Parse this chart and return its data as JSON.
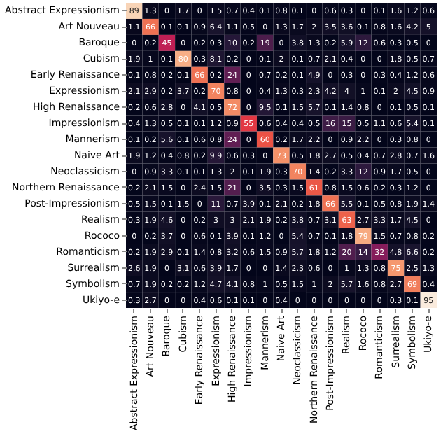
{
  "chart_data": {
    "type": "heatmap",
    "categories": [
      "Abstract Expressionism",
      "Art Nouveau",
      "Baroque",
      "Cubism",
      "Early Renaissance",
      "Expressionism",
      "High Renaissance",
      "Impressionism",
      "Mannerism",
      "Naive Art",
      "Neoclassicism",
      "Northern Renaissance",
      "Post-Impressionism",
      "Realism",
      "Rococo",
      "Romanticism",
      "Surrealism",
      "Symbolism",
      "Ukiyo-e"
    ],
    "y_categories": [
      "Abstract Expressionism",
      "Art Nouveau",
      "Baroque",
      "Cubism",
      "Early Renaissance",
      "Expressionism",
      "High Renaissance",
      "Impressionism",
      "Mannerism",
      "Naive Art",
      "Neoclassicism",
      "Northern Renaissance",
      "Post-Impressionism",
      "Realism",
      "Rococo",
      "Romanticism",
      "Surrealism",
      "Symbolism",
      "Ukiyo-e"
    ],
    "cells": [
      [
        89,
        1.3,
        0,
        1.7,
        0,
        1.5,
        0.7,
        0.4,
        0.1,
        0.8,
        0.1,
        0,
        0.6,
        0.3,
        0,
        0.1,
        1.6,
        1.2,
        0.6
      ],
      [
        1.1,
        66,
        0.1,
        0.1,
        0.9,
        6.4,
        1.1,
        0.5,
        0,
        1.3,
        1.7,
        2,
        3.5,
        3.6,
        0.1,
        0.8,
        1.6,
        4.2,
        5
      ],
      [
        0,
        0.2,
        45,
        0,
        0.2,
        0.3,
        10,
        0.2,
        19,
        0,
        3.8,
        1.3,
        0.2,
        5.9,
        12,
        0.6,
        0.3,
        0.5,
        0
      ],
      [
        1.9,
        1,
        0.1,
        80,
        0.3,
        8.1,
        0.2,
        0,
        0.1,
        2,
        0.1,
        0.7,
        2.1,
        0.4,
        0,
        0,
        1.8,
        0.5,
        0.7
      ],
      [
        0.1,
        0.8,
        0.2,
        0.1,
        66,
        0.2,
        24,
        0,
        0.7,
        0.2,
        0.1,
        4.9,
        0,
        0.3,
        0,
        0.3,
        0.4,
        1.2,
        0.6
      ],
      [
        2.1,
        2.9,
        0.2,
        3.7,
        0.2,
        70,
        0.8,
        0,
        0.4,
        1.3,
        0.3,
        2.3,
        4.2,
        4,
        1,
        0.1,
        2,
        4.5,
        0.9
      ],
      [
        0.2,
        0.6,
        2.8,
        0,
        4.1,
        0.5,
        72,
        0,
        9.5,
        0.1,
        1.5,
        5.7,
        0.1,
        1.4,
        0.8,
        0,
        0.1,
        0.5,
        0.1
      ],
      [
        0.4,
        1.3,
        0.5,
        0.1,
        0.1,
        1.2,
        0.9,
        55,
        0.6,
        0.4,
        0.4,
        0.5,
        16,
        15,
        0.5,
        1.1,
        0.6,
        5.4,
        0.1
      ],
      [
        0.1,
        0.2,
        5.6,
        0.1,
        0.6,
        0.8,
        24,
        0,
        60,
        0.2,
        1.7,
        2.2,
        0,
        0.9,
        2.2,
        0,
        0.3,
        0.8,
        0
      ],
      [
        1.9,
        1.2,
        0.4,
        0.8,
        0.2,
        9.9,
        0.6,
        0.3,
        0,
        73,
        0.5,
        1.8,
        2.7,
        0.5,
        0.4,
        0.7,
        2.8,
        0.7,
        1.6
      ],
      [
        0,
        0.9,
        3.3,
        0.1,
        0.1,
        1.3,
        2,
        0.1,
        1.9,
        0.3,
        70,
        1.4,
        0.2,
        3.3,
        12,
        0.9,
        1.7,
        0.5,
        0
      ],
      [
        0.2,
        2.1,
        1.5,
        0,
        2.4,
        1.5,
        21,
        0,
        3.5,
        0.3,
        1.5,
        61,
        0.8,
        1.5,
        0.6,
        0.2,
        0.3,
        1.2,
        0
      ],
      [
        0.5,
        1.5,
        0.1,
        1.5,
        0,
        11,
        0.7,
        3.9,
        0.1,
        2.1,
        0.2,
        1.8,
        66,
        5.5,
        0.1,
        0.5,
        0.8,
        1.9,
        1.4
      ],
      [
        0.3,
        1.9,
        4.6,
        0,
        0.2,
        3,
        3,
        2.1,
        1.9,
        0.2,
        3.8,
        0.7,
        3.1,
        63,
        2.7,
        3.3,
        1.7,
        4.5,
        0
      ],
      [
        0,
        0.2,
        3.7,
        0,
        0.6,
        0.1,
        3.9,
        0.1,
        1.2,
        0,
        5.4,
        0.7,
        0.1,
        1.8,
        79,
        1.5,
        0.7,
        0.8,
        0.2
      ],
      [
        0.2,
        1.9,
        2.9,
        0.1,
        1.4,
        0.8,
        3.2,
        0.6,
        1.5,
        0.9,
        5.7,
        1.8,
        1.2,
        20,
        14,
        32,
        4.8,
        6.6,
        0.2
      ],
      [
        2.6,
        1.9,
        0,
        3.1,
        0.6,
        3.9,
        1.7,
        0,
        0,
        1.4,
        2.3,
        0.6,
        0,
        1,
        1.3,
        0.8,
        75,
        2.5,
        1.3
      ],
      [
        0.7,
        1.9,
        0.2,
        0.2,
        1.2,
        4.7,
        4.1,
        0.8,
        1,
        0.5,
        1.5,
        1,
        2,
        5.7,
        1.6,
        0.8,
        2.7,
        69,
        0.4
      ],
      [
        0.3,
        2.7,
        0,
        0,
        0.4,
        0.6,
        0.1,
        0.1,
        0,
        0.4,
        0,
        0,
        0,
        0,
        0,
        0,
        0.3,
        0.1,
        95
      ]
    ],
    "data_labels": true
  }
}
